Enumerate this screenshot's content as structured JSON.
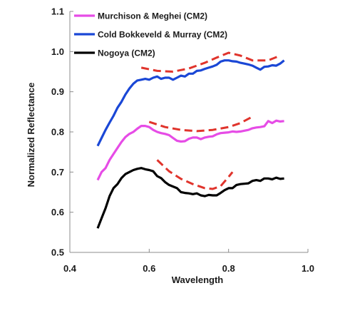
{
  "chart_data": {
    "type": "line",
    "title": "",
    "xlabel": "Wavelength",
    "ylabel": "Normalized  Reflectance",
    "xlim": [
      0.4,
      1.0
    ],
    "ylim": [
      0.5,
      1.1
    ],
    "xticks": [
      "0.4",
      "0.6",
      "0.8",
      "1.0"
    ],
    "yticks": [
      "0.5",
      "0.6",
      "0.7",
      "0.8",
      "0.9",
      "1.0",
      "1.1"
    ],
    "grid": false,
    "legend_position": "top-left",
    "series": [
      {
        "name": "Murchison & Meghei (CM2)",
        "color": "#e64ce6",
        "style": "solid",
        "points": [
          [
            0.47,
            0.68
          ],
          [
            0.48,
            0.7
          ],
          [
            0.49,
            0.71
          ],
          [
            0.5,
            0.73
          ],
          [
            0.51,
            0.745
          ],
          [
            0.52,
            0.76
          ],
          [
            0.53,
            0.775
          ],
          [
            0.54,
            0.787
          ],
          [
            0.55,
            0.795
          ],
          [
            0.56,
            0.8
          ],
          [
            0.57,
            0.808
          ],
          [
            0.58,
            0.815
          ],
          [
            0.59,
            0.815
          ],
          [
            0.6,
            0.812
          ],
          [
            0.61,
            0.805
          ],
          [
            0.62,
            0.8
          ],
          [
            0.63,
            0.797
          ],
          [
            0.64,
            0.795
          ],
          [
            0.65,
            0.792
          ],
          [
            0.66,
            0.785
          ],
          [
            0.67,
            0.778
          ],
          [
            0.68,
            0.776
          ],
          [
            0.69,
            0.777
          ],
          [
            0.7,
            0.783
          ],
          [
            0.71,
            0.786
          ],
          [
            0.72,
            0.786
          ],
          [
            0.73,
            0.782
          ],
          [
            0.74,
            0.786
          ],
          [
            0.75,
            0.788
          ],
          [
            0.76,
            0.789
          ],
          [
            0.77,
            0.794
          ],
          [
            0.78,
            0.797
          ],
          [
            0.79,
            0.798
          ],
          [
            0.8,
            0.799
          ],
          [
            0.81,
            0.801
          ],
          [
            0.82,
            0.8
          ],
          [
            0.83,
            0.801
          ],
          [
            0.84,
            0.803
          ],
          [
            0.85,
            0.805
          ],
          [
            0.86,
            0.809
          ],
          [
            0.87,
            0.811
          ],
          [
            0.88,
            0.812
          ],
          [
            0.89,
            0.814
          ],
          [
            0.9,
            0.827
          ],
          [
            0.91,
            0.822
          ],
          [
            0.92,
            0.828
          ],
          [
            0.93,
            0.826
          ],
          [
            0.94,
            0.827
          ]
        ]
      },
      {
        "name": "Cold Bokkeveld & Murray (CM2)",
        "color": "#1a47d6",
        "style": "solid",
        "points": [
          [
            0.47,
            0.765
          ],
          [
            0.48,
            0.785
          ],
          [
            0.49,
            0.805
          ],
          [
            0.5,
            0.823
          ],
          [
            0.51,
            0.84
          ],
          [
            0.52,
            0.86
          ],
          [
            0.53,
            0.875
          ],
          [
            0.54,
            0.893
          ],
          [
            0.55,
            0.908
          ],
          [
            0.56,
            0.92
          ],
          [
            0.57,
            0.928
          ],
          [
            0.58,
            0.93
          ],
          [
            0.59,
            0.932
          ],
          [
            0.6,
            0.93
          ],
          [
            0.61,
            0.935
          ],
          [
            0.62,
            0.938
          ],
          [
            0.63,
            0.932
          ],
          [
            0.64,
            0.935
          ],
          [
            0.65,
            0.935
          ],
          [
            0.66,
            0.93
          ],
          [
            0.67,
            0.935
          ],
          [
            0.68,
            0.94
          ],
          [
            0.69,
            0.938
          ],
          [
            0.7,
            0.945
          ],
          [
            0.71,
            0.945
          ],
          [
            0.72,
            0.952
          ],
          [
            0.73,
            0.953
          ],
          [
            0.74,
            0.957
          ],
          [
            0.75,
            0.96
          ],
          [
            0.76,
            0.963
          ],
          [
            0.77,
            0.967
          ],
          [
            0.78,
            0.975
          ],
          [
            0.79,
            0.978
          ],
          [
            0.8,
            0.978
          ],
          [
            0.81,
            0.976
          ],
          [
            0.82,
            0.975
          ],
          [
            0.83,
            0.972
          ],
          [
            0.84,
            0.97
          ],
          [
            0.85,
            0.968
          ],
          [
            0.86,
            0.965
          ],
          [
            0.87,
            0.96
          ],
          [
            0.88,
            0.955
          ],
          [
            0.89,
            0.962
          ],
          [
            0.9,
            0.963
          ],
          [
            0.91,
            0.966
          ],
          [
            0.92,
            0.965
          ],
          [
            0.93,
            0.97
          ],
          [
            0.94,
            0.978
          ]
        ]
      },
      {
        "name": "Nogoya (CM2)",
        "color": "#000000",
        "style": "solid",
        "points": [
          [
            0.47,
            0.56
          ],
          [
            0.48,
            0.585
          ],
          [
            0.49,
            0.61
          ],
          [
            0.5,
            0.64
          ],
          [
            0.51,
            0.66
          ],
          [
            0.52,
            0.67
          ],
          [
            0.53,
            0.685
          ],
          [
            0.54,
            0.695
          ],
          [
            0.55,
            0.7
          ],
          [
            0.56,
            0.705
          ],
          [
            0.57,
            0.708
          ],
          [
            0.58,
            0.71
          ],
          [
            0.59,
            0.707
          ],
          [
            0.6,
            0.705
          ],
          [
            0.61,
            0.702
          ],
          [
            0.62,
            0.69
          ],
          [
            0.63,
            0.685
          ],
          [
            0.64,
            0.675
          ],
          [
            0.65,
            0.668
          ],
          [
            0.66,
            0.664
          ],
          [
            0.67,
            0.66
          ],
          [
            0.68,
            0.65
          ],
          [
            0.69,
            0.648
          ],
          [
            0.7,
            0.647
          ],
          [
            0.71,
            0.645
          ],
          [
            0.72,
            0.647
          ],
          [
            0.73,
            0.642
          ],
          [
            0.74,
            0.64
          ],
          [
            0.75,
            0.643
          ],
          [
            0.76,
            0.642
          ],
          [
            0.77,
            0.642
          ],
          [
            0.78,
            0.648
          ],
          [
            0.79,
            0.655
          ],
          [
            0.8,
            0.66
          ],
          [
            0.81,
            0.66
          ],
          [
            0.82,
            0.668
          ],
          [
            0.83,
            0.67
          ],
          [
            0.84,
            0.671
          ],
          [
            0.85,
            0.672
          ],
          [
            0.86,
            0.678
          ],
          [
            0.87,
            0.68
          ],
          [
            0.88,
            0.678
          ],
          [
            0.89,
            0.684
          ],
          [
            0.9,
            0.684
          ],
          [
            0.91,
            0.682
          ],
          [
            0.92,
            0.686
          ],
          [
            0.93,
            0.683
          ],
          [
            0.94,
            0.684
          ]
        ]
      },
      {
        "name": "",
        "color": "#e0342c",
        "style": "dashed",
        "points": [
          [
            0.58,
            0.96
          ],
          [
            0.62,
            0.952
          ],
          [
            0.66,
            0.95
          ],
          [
            0.7,
            0.958
          ],
          [
            0.74,
            0.972
          ],
          [
            0.77,
            0.985
          ],
          [
            0.8,
            0.997
          ],
          [
            0.83,
            0.99
          ],
          [
            0.86,
            0.978
          ],
          [
            0.9,
            0.978
          ],
          [
            0.93,
            0.99
          ]
        ]
      },
      {
        "name": "",
        "color": "#e0342c",
        "style": "dashed",
        "points": [
          [
            0.6,
            0.825
          ],
          [
            0.64,
            0.812
          ],
          [
            0.68,
            0.805
          ],
          [
            0.72,
            0.802
          ],
          [
            0.76,
            0.805
          ],
          [
            0.8,
            0.812
          ],
          [
            0.83,
            0.822
          ],
          [
            0.86,
            0.838
          ]
        ]
      },
      {
        "name": "",
        "color": "#e0342c",
        "style": "dashed",
        "points": [
          [
            0.62,
            0.73
          ],
          [
            0.65,
            0.702
          ],
          [
            0.68,
            0.683
          ],
          [
            0.71,
            0.67
          ],
          [
            0.74,
            0.66
          ],
          [
            0.76,
            0.658
          ],
          [
            0.78,
            0.665
          ],
          [
            0.8,
            0.688
          ],
          [
            0.81,
            0.7
          ]
        ]
      }
    ]
  }
}
